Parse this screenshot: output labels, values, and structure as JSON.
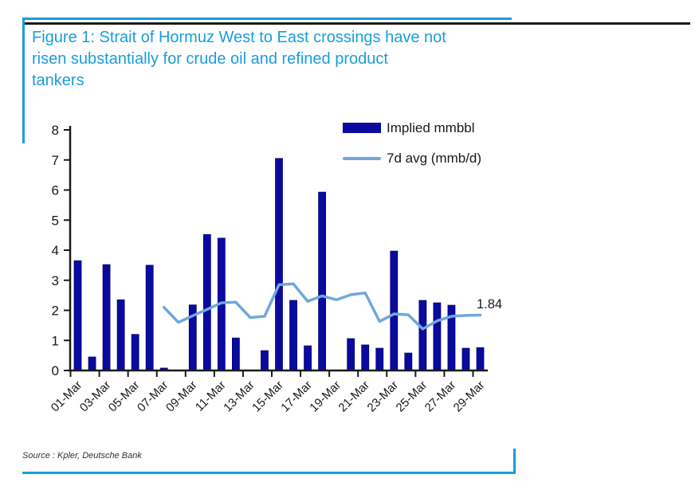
{
  "figure": {
    "title_lines": [
      "Figure 1: Strait of Hormuz West to East crossings have not",
      "risen substantially for crude oil and refined product",
      "tankers"
    ],
    "source": "Source : Kpler, Deutsche Bank"
  },
  "colors": {
    "accent_blue": "#1B9DD9",
    "bar_navy": "#0A0A9F",
    "bar_edge": "#050573",
    "line_blue": "#6FA8DC",
    "axis_black": "#1A1A1A"
  },
  "chart_data": {
    "type": "bar+line",
    "categories": [
      "01-Mar",
      "02-Mar",
      "03-Mar",
      "04-Mar",
      "05-Mar",
      "06-Mar",
      "07-Mar",
      "08-Mar",
      "09-Mar",
      "10-Mar",
      "11-Mar",
      "12-Mar",
      "13-Mar",
      "14-Mar",
      "15-Mar",
      "16-Mar",
      "17-Mar",
      "18-Mar",
      "19-Mar",
      "20-Mar",
      "21-Mar",
      "22-Mar",
      "23-Mar",
      "24-Mar",
      "25-Mar",
      "26-Mar",
      "27-Mar",
      "28-Mar",
      "29-Mar"
    ],
    "series": [
      {
        "name": "Implied mmbbl",
        "type": "bar",
        "values": [
          3.65,
          0.45,
          3.52,
          2.35,
          1.2,
          3.5,
          0.08,
          0,
          2.18,
          4.52,
          4.4,
          1.08,
          0,
          0.66,
          7.05,
          2.33,
          0.82,
          5.93,
          0,
          1.06,
          0.85,
          0.74,
          3.97,
          0.58,
          2.33,
          2.25,
          2.17,
          0.74,
          0.76
        ]
      },
      {
        "name": "7d avg (mmb/d)",
        "type": "line",
        "values": [
          null,
          null,
          null,
          null,
          null,
          null,
          2.1,
          1.6,
          1.82,
          2.03,
          2.25,
          2.27,
          1.76,
          1.8,
          2.85,
          2.88,
          2.3,
          2.48,
          2.35,
          2.52,
          2.58,
          1.63,
          1.88,
          1.85,
          1.38,
          1.65,
          1.8,
          1.83,
          1.84
        ]
      }
    ],
    "ylim": [
      0,
      8
    ],
    "yticks": [
      0,
      1,
      2,
      3,
      4,
      5,
      6,
      7,
      8
    ],
    "xtick_labels": [
      "01-Mar",
      "03-Mar",
      "05-Mar",
      "07-Mar",
      "09-Mar",
      "11-Mar",
      "13-Mar",
      "15-Mar",
      "17-Mar",
      "19-Mar",
      "21-Mar",
      "23-Mar",
      "25-Mar",
      "27-Mar",
      "29-Mar"
    ],
    "annotation": "1.84",
    "grid": "off",
    "legend_position": "top-right-inside"
  }
}
